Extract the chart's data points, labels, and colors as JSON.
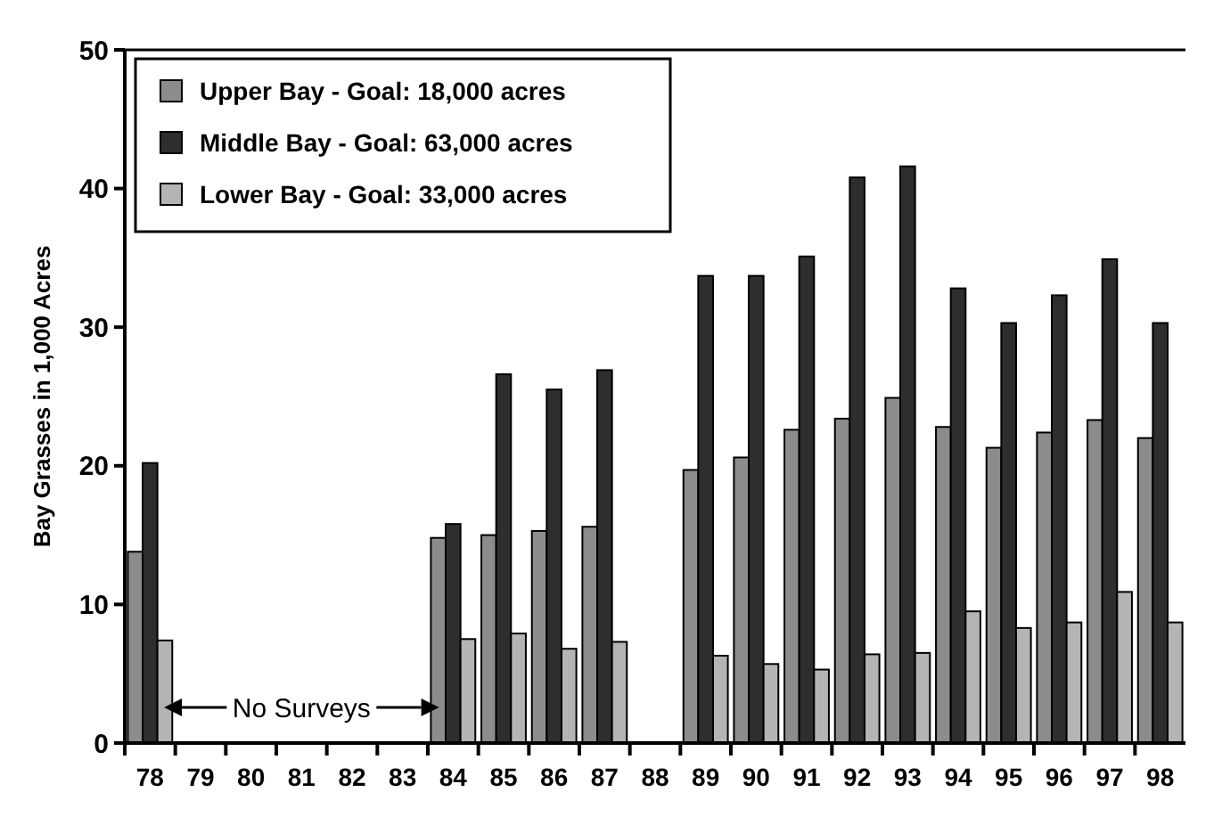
{
  "chart_data": {
    "type": "bar",
    "ylabel": "Bay Grasses in 1,000 Acres",
    "categories": [
      "78",
      "79",
      "80",
      "81",
      "82",
      "83",
      "84",
      "85",
      "86",
      "87",
      "88",
      "89",
      "90",
      "91",
      "92",
      "93",
      "94",
      "95",
      "96",
      "97",
      "98"
    ],
    "series": [
      {
        "name": "Upper Bay - Goal: 18,000 acres",
        "color": "#8c8c8c",
        "values": [
          13.8,
          null,
          null,
          null,
          null,
          null,
          14.8,
          15.0,
          15.3,
          15.6,
          null,
          19.7,
          20.6,
          22.6,
          23.4,
          24.9,
          22.8,
          21.3,
          22.4,
          23.3,
          22.0
        ]
      },
      {
        "name": "Middle Bay - Goal: 63,000 acres",
        "color": "#2e2e2e",
        "values": [
          20.2,
          null,
          null,
          null,
          null,
          null,
          15.8,
          26.6,
          25.5,
          26.9,
          null,
          33.7,
          33.7,
          35.1,
          40.8,
          41.6,
          32.8,
          30.3,
          32.3,
          34.9,
          30.3
        ]
      },
      {
        "name": "Lower Bay - Goal: 33,000 acres",
        "color": "#b4b4b4",
        "values": [
          7.4,
          null,
          null,
          null,
          null,
          null,
          7.5,
          7.9,
          6.8,
          7.3,
          null,
          6.3,
          5.7,
          5.3,
          6.4,
          6.5,
          9.5,
          8.3,
          8.7,
          10.9,
          8.7
        ]
      }
    ],
    "ylim": [
      0,
      50
    ],
    "yticks": [
      0,
      10,
      20,
      30,
      40,
      50
    ],
    "grid": false,
    "legend": "top left",
    "annotations": [
      "No Surveys"
    ]
  }
}
